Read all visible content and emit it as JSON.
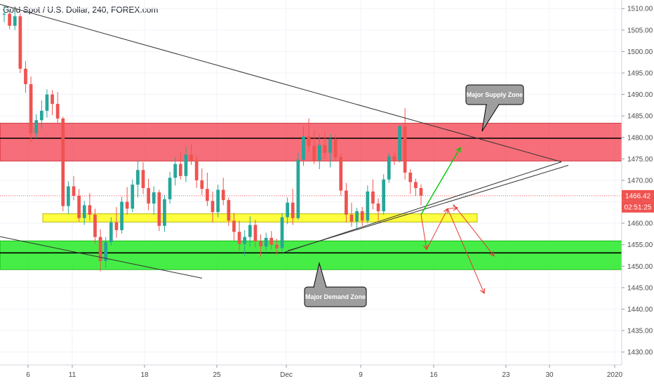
{
  "header": {
    "title": "Gold Spot / U.S. Dollar, 240, FOREX.com"
  },
  "chart_data": {
    "type": "candlestick",
    "title": "Gold Spot / U.S. Dollar, 240, FOREX.com",
    "ylim": [
      1427,
      1512
    ],
    "y_ticks": [
      1510.0,
      1505.0,
      1500.0,
      1495.0,
      1490.0,
      1485.0,
      1480.0,
      1475.0,
      1470.0,
      1465.0,
      1460.0,
      1455.0,
      1450.0,
      1445.0,
      1440.0,
      1435.0,
      1430.0
    ],
    "x_ticks": [
      "6",
      "11",
      "18",
      "25",
      "Dec",
      "9",
      "16",
      "23",
      "30",
      "2020"
    ],
    "last_price": "1466.42",
    "countdown": "02:51:25",
    "zones": [
      {
        "label": "Major Supply Zone",
        "from": 1474.5,
        "to": 1483.3,
        "color": "#f23645"
      },
      {
        "label": "Major Demand Zone",
        "from": 1449.2,
        "to": 1455.9,
        "color": "#00e600"
      },
      {
        "label": "",
        "from": 1460.3,
        "to": 1462.2,
        "color": "#ffff00"
      }
    ],
    "horizontal_levels": [
      1479.8,
      1453.1
    ],
    "candles": [
      [
        1508.6,
        1510.8,
        1506.8,
        1508.8
      ],
      [
        1508.8,
        1509.4,
        1505.2,
        1506.0
      ],
      [
        1506.0,
        1509.6,
        1505.0,
        1508.2
      ],
      [
        1508.2,
        1508.8,
        1495.0,
        1496.0
      ],
      [
        1496.0,
        1497.8,
        1490.4,
        1492.4
      ],
      [
        1492.4,
        1494.2,
        1478.8,
        1481.0
      ],
      [
        1481.0,
        1485.4,
        1479.8,
        1484.0
      ],
      [
        1484.0,
        1488.6,
        1482.0,
        1486.2
      ],
      [
        1486.2,
        1491.2,
        1484.6,
        1490.0
      ],
      [
        1490.0,
        1491.0,
        1485.2,
        1487.8
      ],
      [
        1487.8,
        1490.6,
        1483.0,
        1484.4
      ],
      [
        1484.4,
        1484.8,
        1462.8,
        1464.0
      ],
      [
        1464.0,
        1469.8,
        1462.2,
        1468.6
      ],
      [
        1468.6,
        1471.0,
        1465.4,
        1466.4
      ],
      [
        1466.4,
        1468.0,
        1460.4,
        1461.2
      ],
      [
        1461.2,
        1465.2,
        1459.6,
        1464.2
      ],
      [
        1464.2,
        1467.0,
        1460.6,
        1462.0
      ],
      [
        1462.0,
        1463.4,
        1455.2,
        1456.8
      ],
      [
        1456.8,
        1458.6,
        1448.8,
        1451.2
      ],
      [
        1451.2,
        1456.8,
        1449.6,
        1455.6
      ],
      [
        1455.6,
        1461.4,
        1454.8,
        1460.2
      ],
      [
        1460.2,
        1463.8,
        1456.6,
        1458.4
      ],
      [
        1458.4,
        1466.2,
        1457.6,
        1465.0
      ],
      [
        1465.0,
        1468.4,
        1462.0,
        1463.4
      ],
      [
        1463.4,
        1470.2,
        1462.6,
        1469.0
      ],
      [
        1469.0,
        1474.6,
        1466.0,
        1472.4
      ],
      [
        1472.4,
        1474.2,
        1466.8,
        1468.2
      ],
      [
        1468.2,
        1470.4,
        1463.0,
        1464.6
      ],
      [
        1464.6,
        1468.6,
        1462.0,
        1467.2
      ],
      [
        1467.2,
        1467.8,
        1458.2,
        1459.4
      ],
      [
        1459.4,
        1466.6,
        1458.0,
        1465.6
      ],
      [
        1465.6,
        1472.0,
        1464.6,
        1470.6
      ],
      [
        1470.6,
        1475.4,
        1468.8,
        1473.8
      ],
      [
        1473.8,
        1476.6,
        1470.2,
        1471.0
      ],
      [
        1471.0,
        1477.8,
        1469.6,
        1476.0
      ],
      [
        1476.0,
        1478.4,
        1473.6,
        1474.6
      ],
      [
        1474.6,
        1475.8,
        1468.2,
        1470.0
      ],
      [
        1470.0,
        1472.8,
        1466.6,
        1468.0
      ],
      [
        1468.0,
        1471.8,
        1464.0,
        1465.2
      ],
      [
        1465.2,
        1467.4,
        1460.2,
        1462.6
      ],
      [
        1462.6,
        1469.0,
        1461.4,
        1467.8
      ],
      [
        1467.8,
        1470.6,
        1464.2,
        1465.4
      ],
      [
        1465.4,
        1466.0,
        1459.4,
        1460.6
      ],
      [
        1460.6,
        1462.4,
        1456.0,
        1458.0
      ],
      [
        1458.0,
        1460.6,
        1453.6,
        1455.2
      ],
      [
        1455.2,
        1458.4,
        1452.4,
        1456.8
      ],
      [
        1456.8,
        1461.6,
        1454.6,
        1459.6
      ],
      [
        1459.6,
        1460.8,
        1454.4,
        1455.8
      ],
      [
        1455.8,
        1457.4,
        1452.2,
        1454.6
      ],
      [
        1454.6,
        1457.8,
        1453.6,
        1456.6
      ],
      [
        1456.6,
        1458.2,
        1453.8,
        1455.0
      ],
      [
        1455.0,
        1456.4,
        1452.6,
        1454.2
      ],
      [
        1454.2,
        1462.4,
        1453.4,
        1461.4
      ],
      [
        1461.4,
        1466.0,
        1459.8,
        1464.8
      ],
      [
        1464.8,
        1468.0,
        1459.6,
        1461.2
      ],
      [
        1461.2,
        1476.4,
        1460.8,
        1474.8
      ],
      [
        1474.8,
        1482.6,
        1473.4,
        1480.2
      ],
      [
        1480.2,
        1484.4,
        1476.6,
        1478.0
      ],
      [
        1478.0,
        1481.6,
        1473.8,
        1474.6
      ],
      [
        1474.6,
        1480.6,
        1472.6,
        1478.2
      ],
      [
        1478.2,
        1481.4,
        1475.0,
        1476.4
      ],
      [
        1476.4,
        1480.8,
        1473.0,
        1479.6
      ],
      [
        1479.6,
        1480.6,
        1474.6,
        1475.4
      ],
      [
        1475.4,
        1476.2,
        1466.4,
        1467.6
      ],
      [
        1467.6,
        1469.4,
        1460.2,
        1462.0
      ],
      [
        1462.0,
        1464.8,
        1459.2,
        1460.4
      ],
      [
        1460.4,
        1463.6,
        1458.8,
        1462.8
      ],
      [
        1462.8,
        1463.8,
        1459.4,
        1460.6
      ],
      [
        1460.6,
        1468.8,
        1460.0,
        1467.4
      ],
      [
        1467.4,
        1470.2,
        1463.2,
        1464.6
      ],
      [
        1464.6,
        1465.8,
        1460.6,
        1462.8
      ],
      [
        1462.8,
        1471.4,
        1462.0,
        1470.2
      ],
      [
        1470.2,
        1476.4,
        1469.4,
        1475.6
      ],
      [
        1475.6,
        1476.6,
        1473.6,
        1474.6
      ],
      [
        1474.6,
        1483.4,
        1474.2,
        1482.6
      ],
      [
        1482.6,
        1486.8,
        1470.2,
        1471.8
      ],
      [
        1471.8,
        1472.6,
        1466.8,
        1469.6
      ],
      [
        1469.6,
        1470.4,
        1466.4,
        1468.2
      ],
      [
        1468.2,
        1469.0,
        1464.2,
        1466.42
      ]
    ],
    "drawings": {
      "descending_trendline": [
        [
          0,
          1511.0
        ],
        [
          800,
          1474.3
        ]
      ],
      "ascending_trendlines": [
        [
          [
            403,
            1453.1
          ],
          [
            800,
            1474.3
          ]
        ],
        [
          [
            410,
            1453.6
          ],
          [
            810,
            1473.5
          ]
        ]
      ],
      "demand_trendline": [
        [
          0,
          1456.9
        ],
        [
          288,
          1447.2
        ]
      ],
      "green_arrow": [
        [
          600,
          1462.0
        ],
        [
          656,
          1477.6
        ]
      ],
      "red_arrows": [
        [
          [
            600,
            1462.0
          ],
          [
            608,
            1453.9
          ]
        ],
        [
          [
            608,
            1453.9
          ],
          [
            638,
            1463.4
          ]
        ],
        [
          [
            638,
            1463.4
          ],
          [
            652,
            1463.6
          ]
        ],
        [
          [
            646,
            1464.4
          ],
          [
            704,
            1452.4
          ]
        ],
        [
          [
            638,
            1463.4
          ],
          [
            690,
            1443.7
          ]
        ]
      ]
    }
  }
}
